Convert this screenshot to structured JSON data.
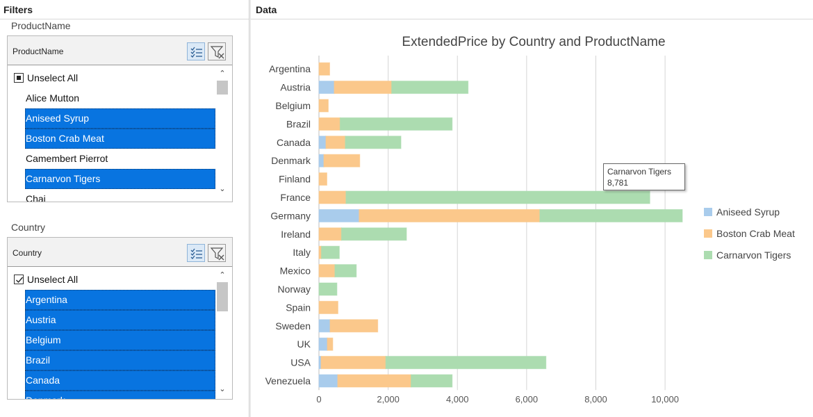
{
  "headers": {
    "filters": "Filters",
    "data": "Data"
  },
  "product_filter": {
    "group_label": "ProductName",
    "header_title": "ProductName",
    "unselect_all": "Unselect All",
    "items": [
      {
        "label": "Alice Mutton",
        "selected": false
      },
      {
        "label": "Aniseed Syrup",
        "selected": true
      },
      {
        "label": "Boston Crab Meat",
        "selected": true
      },
      {
        "label": "Camembert Pierrot",
        "selected": false
      },
      {
        "label": "Carnarvon Tigers",
        "selected": true
      },
      {
        "label": "Chai",
        "selected": false
      }
    ]
  },
  "country_filter": {
    "group_label": "Country",
    "header_title": "Country",
    "unselect_all": "Unselect All",
    "items": [
      {
        "label": "Argentina",
        "selected": true
      },
      {
        "label": "Austria",
        "selected": true
      },
      {
        "label": "Belgium",
        "selected": true
      },
      {
        "label": "Brazil",
        "selected": true
      },
      {
        "label": "Canada",
        "selected": true
      },
      {
        "label": "Denmark",
        "selected": true
      }
    ]
  },
  "tooltip": {
    "series": "Carnarvon Tigers",
    "value": "8,781"
  },
  "colors": {
    "selection": "#0874e0",
    "aniseed": "#a9ccec",
    "boston": "#fbc88b",
    "carnarvon": "#acdcb0"
  },
  "chart_data": {
    "type": "bar",
    "orientation": "horizontal",
    "stacked": true,
    "title": "ExtendedPrice by Country and ProductName",
    "categories": [
      "Argentina",
      "Austria",
      "Belgium",
      "Brazil",
      "Canada",
      "Denmark",
      "Finland",
      "France",
      "Germany",
      "Ireland",
      "Italy",
      "Mexico",
      "Norway",
      "Spain",
      "Sweden",
      "UK",
      "USA",
      "Venezuela"
    ],
    "series": [
      {
        "name": "Aniseed Syrup",
        "color": "#a9ccec",
        "values": [
          0,
          440,
          0,
          0,
          200,
          140,
          0,
          0,
          1160,
          0,
          0,
          0,
          0,
          0,
          320,
          240,
          60,
          540
        ]
      },
      {
        "name": "Boston Crab Meat",
        "color": "#fbc88b",
        "values": [
          310,
          1660,
          270,
          610,
          560,
          1040,
          230,
          780,
          5220,
          650,
          70,
          460,
          0,
          550,
          1380,
          160,
          1870,
          2120
        ]
      },
      {
        "name": "Carnarvon Tigers",
        "color": "#acdcb0",
        "values": [
          0,
          2210,
          0,
          3240,
          1610,
          0,
          0,
          8781,
          4120,
          1880,
          520,
          620,
          520,
          0,
          0,
          0,
          4630,
          1190
        ]
      }
    ],
    "xlim": [
      0,
      10500
    ],
    "xticks": [
      "0",
      "2,000",
      "4,000",
      "6,000",
      "8,000",
      "10,000"
    ],
    "xtick_values": [
      0,
      2000,
      4000,
      6000,
      8000,
      10000
    ],
    "grid": true,
    "legend_position": "right"
  }
}
